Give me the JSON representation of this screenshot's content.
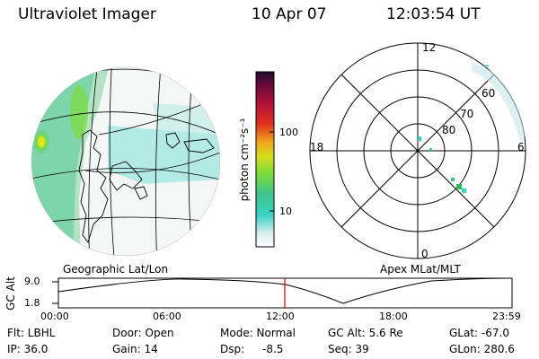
{
  "header": {
    "title": "Ultraviolet Imager",
    "date": "10 Apr 07",
    "time": "12:03:54 UT"
  },
  "colorbar": {
    "unit": "photon cm⁻²s⁻¹",
    "ticks": [
      "100",
      "10"
    ],
    "colors": [
      "#e6eef0",
      "#39d2c8",
      "#7ddc3a",
      "#d6dc1e",
      "#f0a51e",
      "#e0301e",
      "#b0123a",
      "#6a0a3a",
      "#1c0f2a"
    ]
  },
  "maps": {
    "left_label": "Geographic Lat/Lon",
    "right_label": "Apex MLat/MLT",
    "polar": {
      "mlt_labels": {
        "top": "12",
        "left": "18",
        "right": "6",
        "bottom": "0"
      },
      "lat_labels": [
        "60",
        "70",
        "80"
      ]
    }
  },
  "altitude_plot": {
    "ylabel": "GC Alt",
    "yticks": [
      "9.0",
      "1.8"
    ],
    "xticks": [
      "00:00",
      "06:00",
      "12:00",
      "18:00",
      "23:59"
    ],
    "marker_color": "#cc0000"
  },
  "info": {
    "col1": [
      "Flt: LBHL",
      "IP: 36.0"
    ],
    "col2": [
      "Door: Open",
      "Gain: 14"
    ],
    "col3a": [
      "Mode: Normal",
      "Dsp:"
    ],
    "col3b": [
      "",
      "-8.5"
    ],
    "col4": [
      "GC Alt: 5.6 Re",
      "Seq: 39"
    ],
    "col5": [
      "GLat: -67.0",
      "GLon: 280.6"
    ]
  }
}
